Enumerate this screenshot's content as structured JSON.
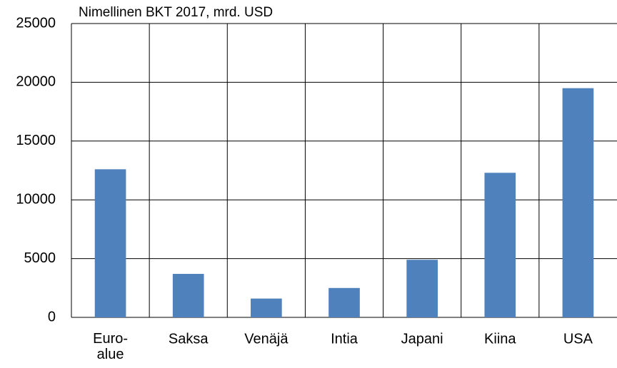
{
  "chart_data": {
    "type": "bar",
    "title": "Nimellinen BKT 2017, mrd. USD",
    "categories": [
      "Euro-\nalue",
      "Saksa",
      "Venäjä",
      "Intia",
      "Japani",
      "Kiina",
      "USA"
    ],
    "values": [
      12600,
      3700,
      1600,
      2500,
      4900,
      12300,
      19500
    ],
    "color": "#4f81bd",
    "ylim": [
      0,
      25000
    ],
    "yticks": [
      0,
      5000,
      10000,
      15000,
      20000,
      25000
    ],
    "grid": true
  }
}
